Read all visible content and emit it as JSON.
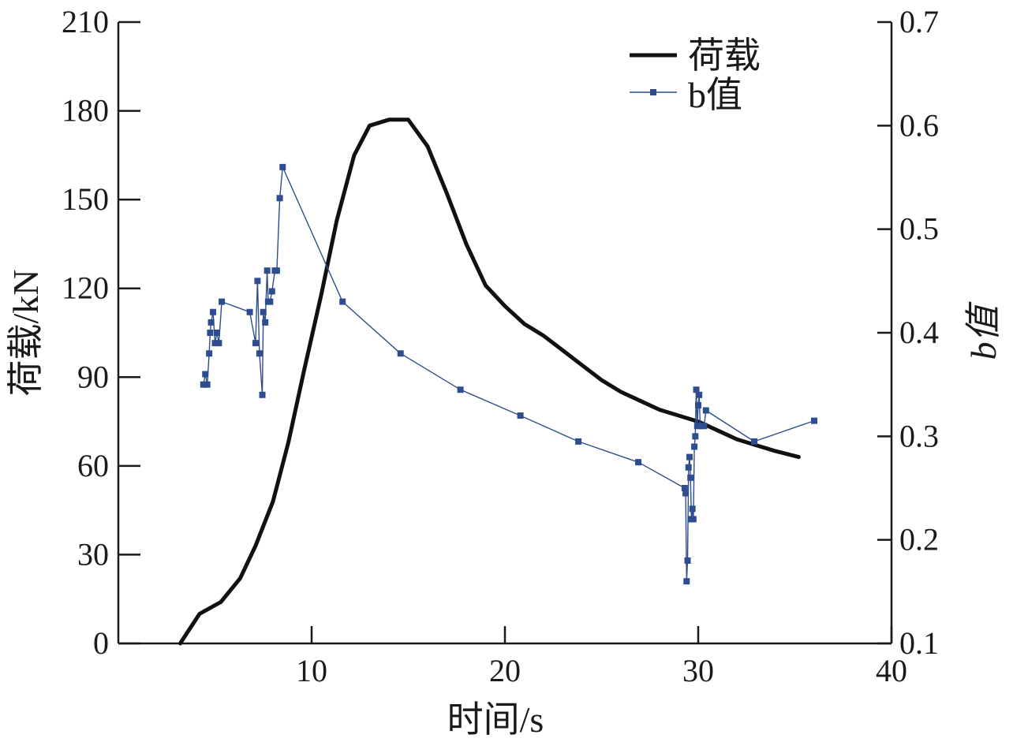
{
  "chart_data": {
    "type": "line",
    "title": "",
    "xlabel": "时间/s",
    "ylabel_left": "荷载/kN",
    "ylabel_right": "b值",
    "xlim": [
      0,
      40
    ],
    "ylim_left": [
      0,
      210
    ],
    "ylim_right": [
      0.1,
      0.7
    ],
    "x_ticks": [
      10,
      20,
      30,
      40
    ],
    "y_left_ticks": [
      0,
      30,
      60,
      90,
      120,
      150,
      180,
      210
    ],
    "y_right_ticks": [
      0.1,
      0.2,
      0.3,
      0.4,
      0.5,
      0.6,
      0.7
    ],
    "grid": false,
    "legend_position": "top-right",
    "series": [
      {
        "name": "荷载",
        "axis": "left",
        "style": "line",
        "color": "#111111",
        "x": [
          3.2,
          4.2,
          5.3,
          6.3,
          7.1,
          8.0,
          8.8,
          9.6,
          10.5,
          11.3,
          12.2,
          13.0,
          14.0,
          14.5,
          15.0,
          16.0,
          17.0,
          18.0,
          19.0,
          20.0,
          21.0,
          22.0,
          23.0,
          24.0,
          25.0,
          26.0,
          27.0,
          28.0,
          29.0,
          30.0,
          31.0,
          32.0,
          33.0,
          34.0,
          35.2
        ],
        "values": [
          0,
          10,
          14,
          22,
          33,
          48,
          68,
          92,
          118,
          143,
          165,
          175,
          177,
          177,
          177,
          168,
          152,
          135,
          121,
          114,
          108,
          104,
          99,
          94,
          89,
          85,
          82,
          79,
          77,
          75,
          72,
          69,
          67,
          65,
          63
        ]
      },
      {
        "name": "b值",
        "axis": "right",
        "style": "line-marker",
        "color": "#2e4d8f",
        "x": [
          4.4,
          4.5,
          4.6,
          4.7,
          4.75,
          4.8,
          4.9,
          5.0,
          5.1,
          5.2,
          5.35,
          6.8,
          7.1,
          7.2,
          7.3,
          7.45,
          7.5,
          7.6,
          7.7,
          7.75,
          7.85,
          7.95,
          8.1,
          8.2,
          8.35,
          8.5,
          11.6,
          14.6,
          17.7,
          20.8,
          23.8,
          26.9,
          29.3,
          29.35,
          29.4,
          29.45,
          29.5,
          29.55,
          29.6,
          29.65,
          29.7,
          29.75,
          29.8,
          29.85,
          29.9,
          29.95,
          30.0,
          30.05,
          30.1,
          30.2,
          30.3,
          30.4,
          32.9,
          36.0
        ],
        "values": [
          0.35,
          0.36,
          0.35,
          0.38,
          0.4,
          0.41,
          0.42,
          0.39,
          0.4,
          0.39,
          0.43,
          0.42,
          0.39,
          0.45,
          0.38,
          0.34,
          0.42,
          0.41,
          0.46,
          0.43,
          0.43,
          0.44,
          0.46,
          0.46,
          0.53,
          0.56,
          0.43,
          0.38,
          0.345,
          0.32,
          0.295,
          0.275,
          0.25,
          0.245,
          0.16,
          0.18,
          0.27,
          0.28,
          0.26,
          0.22,
          0.23,
          0.22,
          0.29,
          0.3,
          0.345,
          0.31,
          0.33,
          0.34,
          0.31,
          0.31,
          0.31,
          0.325,
          0.295,
          0.315
        ]
      }
    ]
  }
}
